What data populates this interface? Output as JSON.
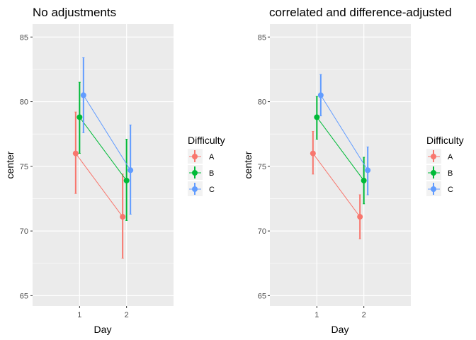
{
  "chart_data": [
    {
      "type": "scatter",
      "title": "No adjustments",
      "xlabel": "Day",
      "ylabel": "center",
      "x_categories": [
        "1",
        "2"
      ],
      "y_ticks": [
        65,
        70,
        75,
        80,
        85
      ],
      "ylim": [
        64.2,
        86.0
      ],
      "grid": true,
      "legend": {
        "title": "Difficulty",
        "placement": "right",
        "entries": [
          {
            "label": "A",
            "color": "#F8766D"
          },
          {
            "label": "B",
            "color": "#00BA38"
          },
          {
            "label": "C",
            "color": "#619CFF"
          }
        ]
      },
      "series": [
        {
          "name": "A",
          "color": "#F8766D",
          "points": [
            {
              "x": "1",
              "y": 76.0,
              "lower": 72.9,
              "upper": 79.2
            },
            {
              "x": "2",
              "y": 71.1,
              "lower": 67.9,
              "upper": 74.4
            }
          ]
        },
        {
          "name": "B",
          "color": "#00BA38",
          "points": [
            {
              "x": "1",
              "y": 78.8,
              "lower": 76.0,
              "upper": 81.5
            },
            {
              "x": "2",
              "y": 73.9,
              "lower": 70.8,
              "upper": 77.1
            }
          ]
        },
        {
          "name": "C",
          "color": "#619CFF",
          "points": [
            {
              "x": "1",
              "y": 80.5,
              "lower": 77.6,
              "upper": 83.4
            },
            {
              "x": "2",
              "y": 74.7,
              "lower": 71.3,
              "upper": 78.2
            }
          ]
        }
      ]
    },
    {
      "type": "scatter",
      "title": "correlated and difference-adjusted",
      "xlabel": "Day",
      "ylabel": "center",
      "x_categories": [
        "1",
        "2"
      ],
      "y_ticks": [
        65,
        70,
        75,
        80,
        85
      ],
      "ylim": [
        64.2,
        86.0
      ],
      "grid": true,
      "legend": {
        "title": "Difficulty",
        "placement": "right",
        "entries": [
          {
            "label": "A",
            "color": "#F8766D"
          },
          {
            "label": "B",
            "color": "#00BA38"
          },
          {
            "label": "C",
            "color": "#619CFF"
          }
        ]
      },
      "series": [
        {
          "name": "A",
          "color": "#F8766D",
          "points": [
            {
              "x": "1",
              "y": 76.0,
              "lower": 74.4,
              "upper": 77.7
            },
            {
              "x": "2",
              "y": 71.1,
              "lower": 69.4,
              "upper": 72.8
            }
          ]
        },
        {
          "name": "B",
          "color": "#00BA38",
          "points": [
            {
              "x": "1",
              "y": 78.8,
              "lower": 77.1,
              "upper": 80.4
            },
            {
              "x": "2",
              "y": 73.9,
              "lower": 72.1,
              "upper": 75.7
            }
          ]
        },
        {
          "name": "C",
          "color": "#619CFF",
          "points": [
            {
              "x": "1",
              "y": 80.5,
              "lower": 78.9,
              "upper": 82.1
            },
            {
              "x": "2",
              "y": 74.7,
              "lower": 72.8,
              "upper": 76.5
            }
          ]
        }
      ]
    }
  ]
}
